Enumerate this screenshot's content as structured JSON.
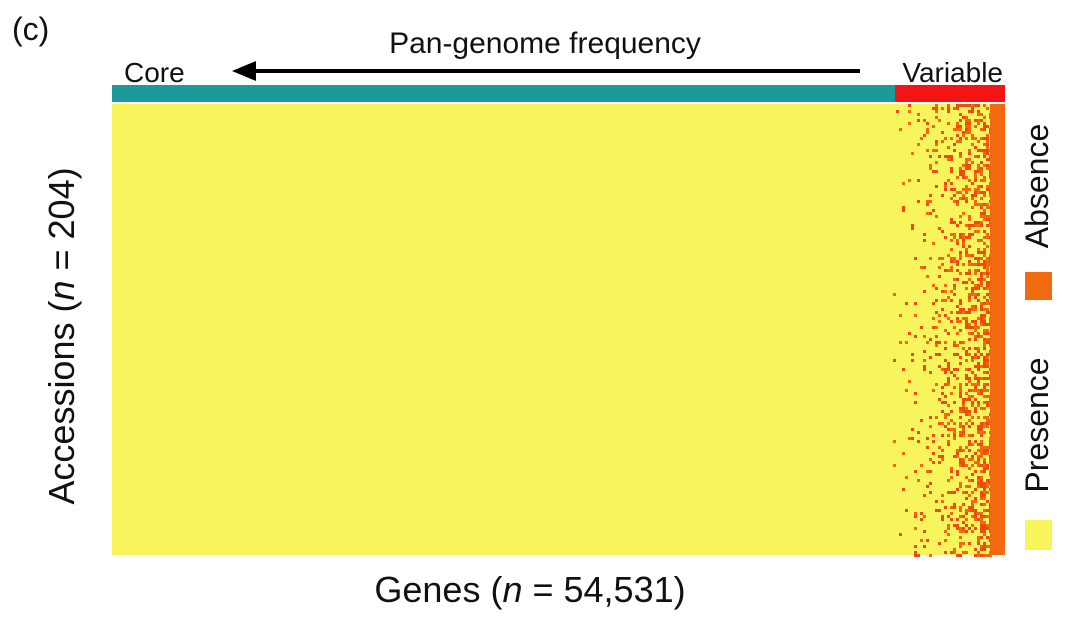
{
  "panel_label": "(c)",
  "arrow": {
    "label": "Pan-genome frequency",
    "left": "Core",
    "right": "Variable"
  },
  "y_label": {
    "prefix": "Accessions (",
    "italic": "n",
    "suffix": " = 204)"
  },
  "x_label": {
    "prefix": "Genes (",
    "italic": "n",
    "suffix": " = 54,531)"
  },
  "legend": {
    "absence": "Absence",
    "presence": "Presence"
  }
}
